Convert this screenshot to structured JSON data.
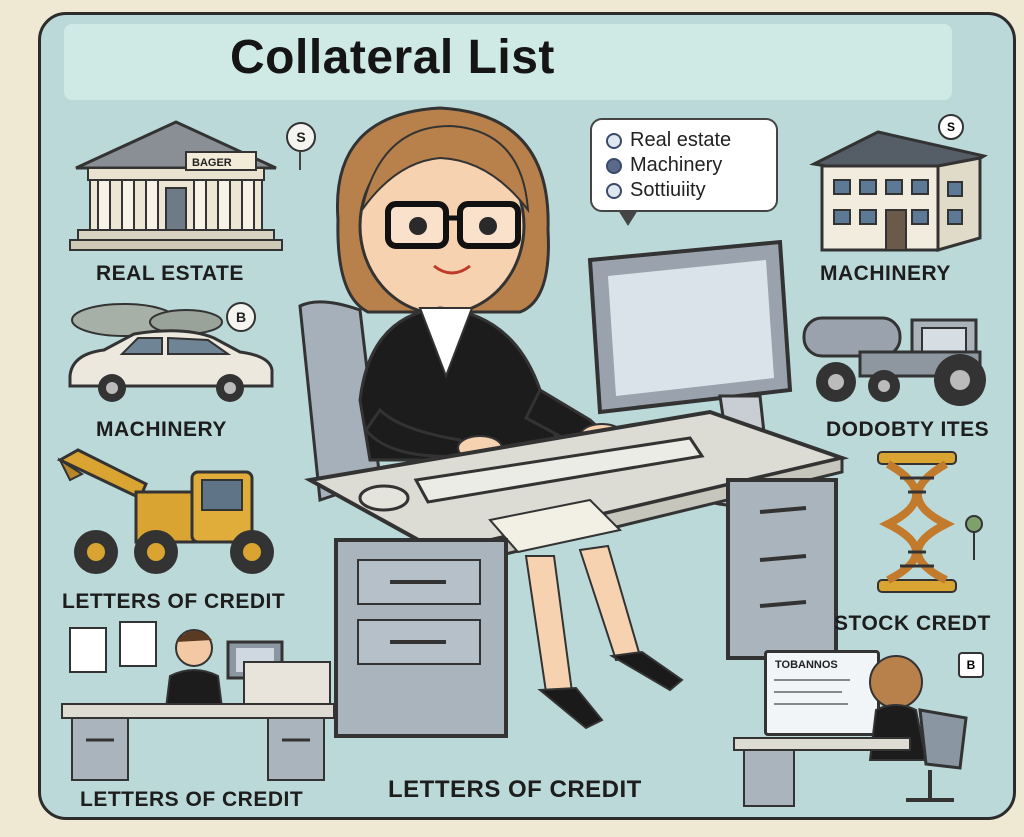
{
  "title": "Collateral List",
  "labels": {
    "real_estate": "REAL ESTATE",
    "machinery_left": "MACHINERY",
    "letters_left": "LETTERS OF CREDIT",
    "letters_bottom_left": "LETTERS OF CREDIT",
    "letters_center": "LETTERS OF CREDIT",
    "machinery_right": "MACHINERY",
    "dodobty": "DODOBTY ITES",
    "stock_credt": "STOCK CREDT"
  },
  "building_sign": "BAGER",
  "speech_bubble": {
    "items": [
      {
        "label": "Real estate"
      },
      {
        "label": "Machinery"
      },
      {
        "label": "Sottiuiity"
      }
    ]
  },
  "pins": {
    "top_center": "S",
    "left_middle": "B",
    "top_right": "S",
    "bottom_right": "B"
  },
  "computer_tag": "TOBANNOS",
  "colors": {
    "frame_border": "#2c2c2c",
    "panel_bg": "#bcd9d9",
    "title_banner": "#cfe9e4",
    "page_bg": "#efe8d2",
    "suit": "#1c1c1c",
    "hair": "#b8814c",
    "desk": "#dcdcd4",
    "cabinet": "#a9b4bd",
    "vehicle_yellow": "#d9a431"
  }
}
